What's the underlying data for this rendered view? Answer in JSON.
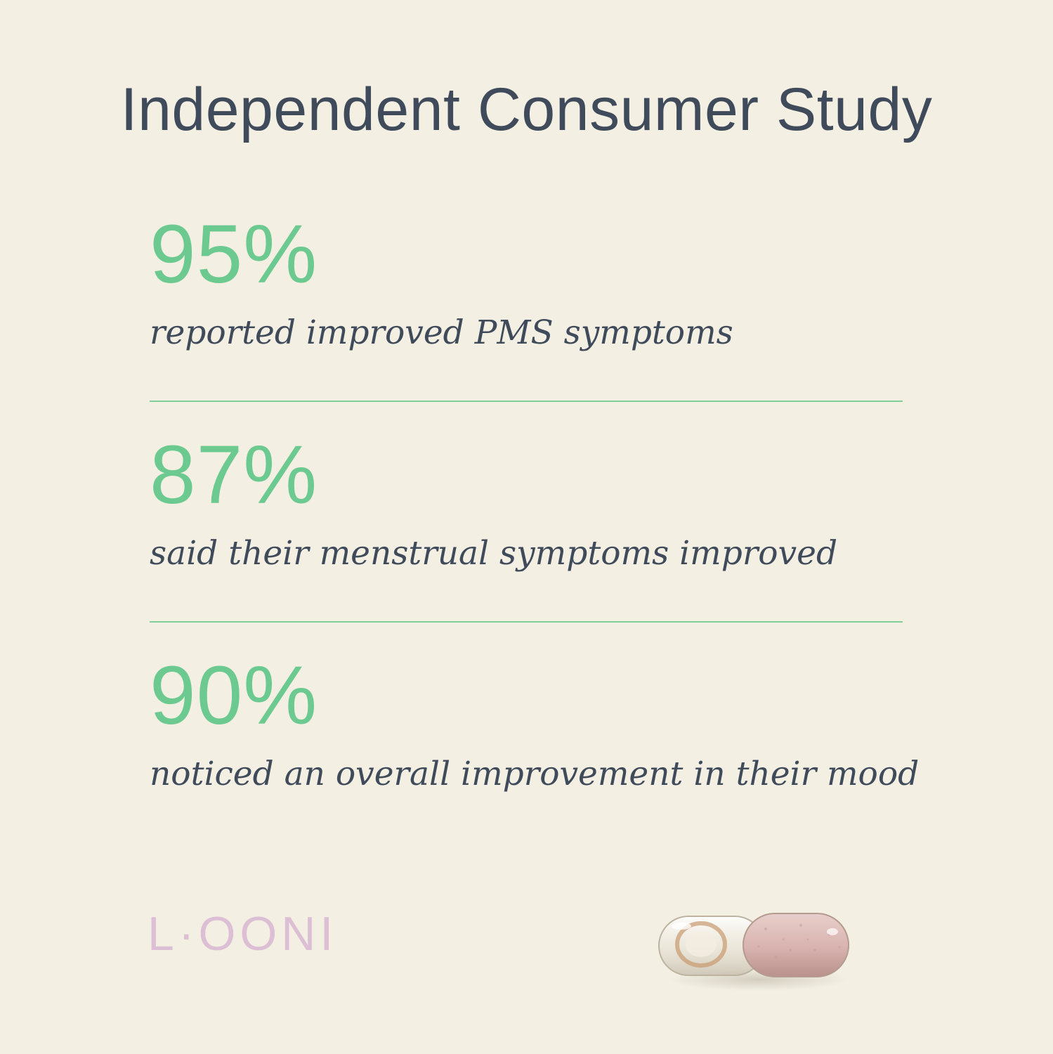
{
  "title": "Independent Consumer Study",
  "stats": [
    {
      "value": "95%",
      "caption": "reported improved PMS symptoms"
    },
    {
      "value": "87%",
      "caption": "said their menstrual symptoms improved"
    },
    {
      "value": "90%",
      "caption": "noticed an overall improvement in their mood"
    }
  ],
  "brand": {
    "logo_text": "L·OONI"
  },
  "colors": {
    "background": "#f3efe2",
    "accent_green": "#6cc98f",
    "text_dark": "#3f4a5a",
    "logo_pink": "#dcbfd5"
  },
  "image": {
    "icon": "capsule-icon"
  }
}
